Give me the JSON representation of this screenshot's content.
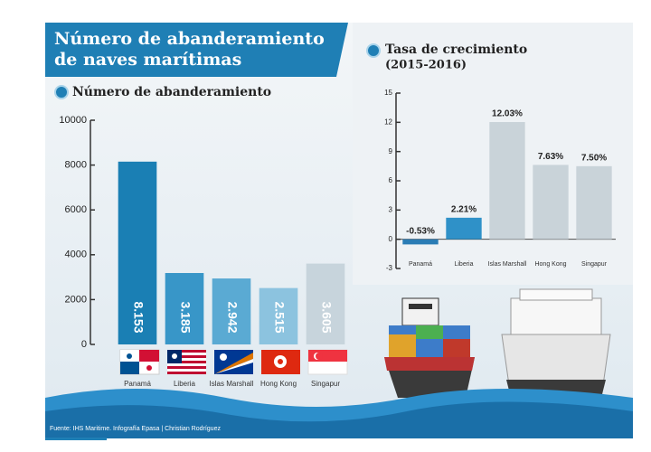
{
  "header": {
    "title_lines": [
      "Número de abanderamiento",
      "de naves marítimas"
    ]
  },
  "source": "Fuente: IHS Maritime. Infografía Epasa | Christian Rodríguez",
  "chart_data": [
    {
      "type": "bar",
      "title": "Número de abanderamiento",
      "categories": [
        "Panamá",
        "Liberia",
        "Islas Marshall",
        "Hong Kong",
        "Singapur"
      ],
      "values": [
        8153,
        3185,
        2942,
        2515,
        3605
      ],
      "value_labels": [
        "8.153",
        "3.185",
        "2.942",
        "2.515",
        "3.605"
      ],
      "colors": [
        "#1a7fb4",
        "#3896c8",
        "#5aaad3",
        "#8cc3df",
        "#c7d4dc"
      ],
      "ylim": [
        0,
        10000
      ],
      "yticks": [
        0,
        2000,
        4000,
        6000,
        8000,
        10000
      ],
      "grid": false
    },
    {
      "type": "bar",
      "title": "Tasa de crecimiento",
      "subtitle": "(2015-2016)",
      "categories": [
        "Panamá",
        "Liberia",
        "Islas Marshall",
        "Hong Kong",
        "Singapur"
      ],
      "values": [
        -0.53,
        2.21,
        12.03,
        7.63,
        7.5
      ],
      "value_labels": [
        "-0.53%",
        "2.21%",
        "12.03%",
        "7.63%",
        "7.50%"
      ],
      "colors": [
        "#2a7cb5",
        "#2f91c8",
        "#c9d3d9",
        "#c9d3d9",
        "#c9d3d9"
      ],
      "ylim": [
        -3,
        15
      ],
      "yticks": [
        -3,
        0,
        3,
        6,
        9,
        12,
        15
      ],
      "grid": false
    }
  ]
}
